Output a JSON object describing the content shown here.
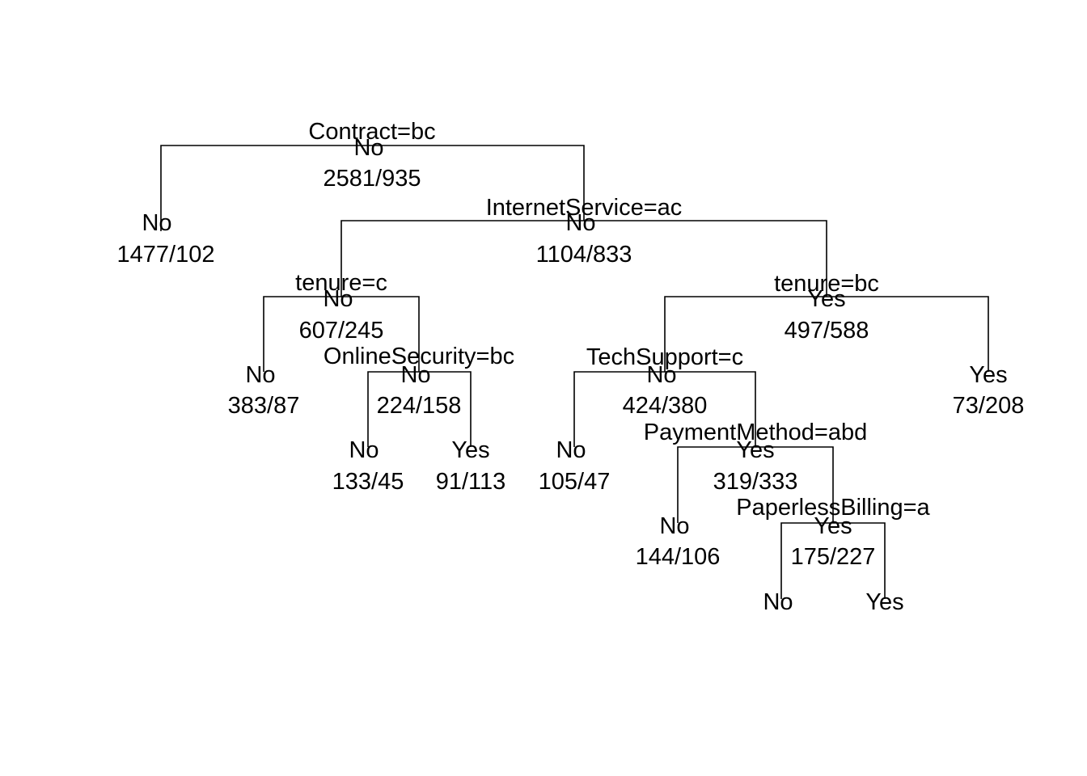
{
  "tree": {
    "nodes": [
      {
        "id": "root",
        "split": "Contract=bc",
        "class": "No",
        "counts": "2581/935"
      },
      {
        "id": "n_L",
        "split": "",
        "class": "No",
        "counts": "1477/102"
      },
      {
        "id": "n_R",
        "split": "InternetService=ac",
        "class": "No",
        "counts": "1104/833"
      },
      {
        "id": "n_RL",
        "split": "tenure=c",
        "class": "No",
        "counts": "607/245"
      },
      {
        "id": "n_RLL",
        "split": "",
        "class": "No",
        "counts": "383/87"
      },
      {
        "id": "n_RLR",
        "split": "OnlineSecurity=bc",
        "class": "No",
        "counts": "224/158"
      },
      {
        "id": "n_RLRL",
        "split": "",
        "class": "No",
        "counts": "133/45"
      },
      {
        "id": "n_RLRR",
        "split": "",
        "class": "Yes",
        "counts": "91/113"
      },
      {
        "id": "n_RR",
        "split": "tenure=bc",
        "class": "Yes",
        "counts": "497/588"
      },
      {
        "id": "n_RRL",
        "split": "TechSupport=c",
        "class": "No",
        "counts": "424/380"
      },
      {
        "id": "n_RRLL",
        "split": "",
        "class": "No",
        "counts": "105/47"
      },
      {
        "id": "n_RRLR",
        "split": "PaymentMethod=abd",
        "class": "Yes",
        "counts": "319/333"
      },
      {
        "id": "n_RRLRL",
        "split": "",
        "class": "No",
        "counts": "144/106"
      },
      {
        "id": "n_RRLRR",
        "split": "PaperlessBilling=a",
        "class": "Yes",
        "counts": "175/227"
      },
      {
        "id": "n_RRLRRL",
        "split": "",
        "class": "No",
        "counts": ""
      },
      {
        "id": "n_RRLRRR",
        "split": "",
        "class": "Yes",
        "counts": ""
      },
      {
        "id": "n_RRR",
        "split": "",
        "class": "Yes",
        "counts": "73/208"
      }
    ]
  }
}
